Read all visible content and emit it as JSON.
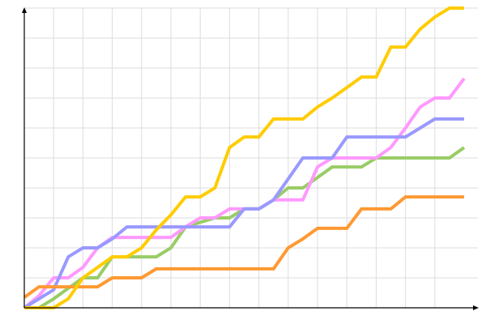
{
  "chart_data": {
    "type": "line",
    "title": "",
    "xlabel": "",
    "ylabel": "",
    "xlim": [
      0,
      15
    ],
    "ylim": [
      0,
      10
    ],
    "grid": true,
    "x_grid_step": 1,
    "y_grid_step": 1,
    "x": [
      0,
      0.5,
      1,
      1.5,
      2,
      2.5,
      3,
      3.5,
      4,
      4.5,
      5,
      5.5,
      6,
      6.5,
      7,
      7.5,
      8,
      8.5,
      9,
      9.5,
      10,
      10.5,
      11,
      11.5,
      12,
      12.5,
      13,
      13.5,
      14,
      14.5,
      15
    ],
    "series": [
      {
        "color": "#99cc66",
        "values": [
          0,
          0,
          0.3,
          0.65,
          1.0,
          1.0,
          1.7,
          1.7,
          1.7,
          1.7,
          2.0,
          2.7,
          2.85,
          3.0,
          3.0,
          3.3,
          3.3,
          3.6,
          4.0,
          4.0,
          4.35,
          4.7,
          4.7,
          4.7,
          5.0,
          5.0,
          5.0,
          5.0,
          5.0,
          5.0,
          5.35
        ]
      },
      {
        "color": "#ff99ff",
        "values": [
          0,
          0.4,
          1.0,
          1.0,
          1.35,
          2.0,
          2.35,
          2.35,
          2.35,
          2.35,
          2.35,
          2.7,
          3.0,
          3.0,
          3.3,
          3.3,
          3.3,
          3.6,
          3.6,
          3.6,
          4.7,
          5.0,
          5.0,
          5.0,
          5.0,
          5.35,
          6.0,
          6.7,
          7.0,
          7.0,
          7.65
        ]
      },
      {
        "color": "#9999ff",
        "values": [
          0,
          0.3,
          0.6,
          1.7,
          2.0,
          2.0,
          2.3,
          2.7,
          2.7,
          2.7,
          2.7,
          2.7,
          2.7,
          2.7,
          2.7,
          3.3,
          3.3,
          3.6,
          4.3,
          5.0,
          5.0,
          5.0,
          5.7,
          5.7,
          5.7,
          5.7,
          5.7,
          6.0,
          6.3,
          6.3,
          6.3
        ]
      },
      {
        "color": "#ff9933",
        "values": [
          0.35,
          0.7,
          0.7,
          0.7,
          0.7,
          0.7,
          1.0,
          1.0,
          1.0,
          1.3,
          1.3,
          1.3,
          1.3,
          1.3,
          1.3,
          1.3,
          1.3,
          1.3,
          2.0,
          2.3,
          2.65,
          2.65,
          2.65,
          3.3,
          3.3,
          3.3,
          3.7,
          3.7,
          3.7,
          3.7,
          3.7
        ]
      },
      {
        "color": "#ffcc00",
        "values": [
          0,
          0,
          0,
          0.3,
          1.0,
          1.35,
          1.7,
          1.7,
          2.0,
          2.6,
          3.1,
          3.7,
          3.7,
          4.0,
          5.35,
          5.7,
          5.7,
          6.3,
          6.3,
          6.3,
          6.7,
          7.0,
          7.35,
          7.7,
          7.7,
          8.7,
          8.7,
          9.3,
          9.7,
          10,
          10
        ]
      }
    ],
    "colors": {
      "grid": "#dddddd",
      "axis": "#000000"
    }
  }
}
